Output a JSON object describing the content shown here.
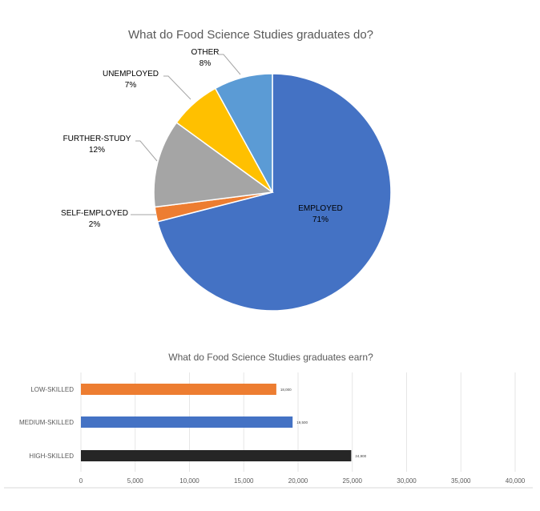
{
  "chart_data": [
    {
      "type": "pie",
      "title": "What do Food Science Studies graduates do?",
      "slices": [
        {
          "label": "EMPLOYED",
          "value": 71,
          "display": "71%",
          "color": "#4472C4"
        },
        {
          "label": "SELF-EMPLOYED",
          "value": 2,
          "display": "2%",
          "color": "#ED7D31"
        },
        {
          "label": "FURTHER-STUDY",
          "value": 12,
          "display": "12%",
          "color": "#A5A5A5"
        },
        {
          "label": "UNEMPLOYED",
          "value": 7,
          "display": "7%",
          "color": "#FFC000"
        },
        {
          "label": "OTHER",
          "value": 8,
          "display": "8%",
          "color": "#5B9BD5"
        }
      ]
    },
    {
      "type": "bar",
      "orientation": "horizontal",
      "title": "What do Food Science Studies graduates earn?",
      "categories": [
        "LOW-SKILLED",
        "MEDIUM-SKILLED",
        "HIGH-SKILLED"
      ],
      "values": [
        18000,
        19500,
        24900
      ],
      "value_labels": [
        "18,000",
        "19,500",
        "24,900"
      ],
      "colors": [
        "#ED7D31",
        "#4472C4",
        "#262626"
      ],
      "xlim": [
        0,
        40000
      ],
      "xticks": [
        "0",
        "5,000",
        "10,000",
        "15,000",
        "20,000",
        "25,000",
        "30,000",
        "35,000",
        "40,000"
      ],
      "grid": true
    }
  ]
}
